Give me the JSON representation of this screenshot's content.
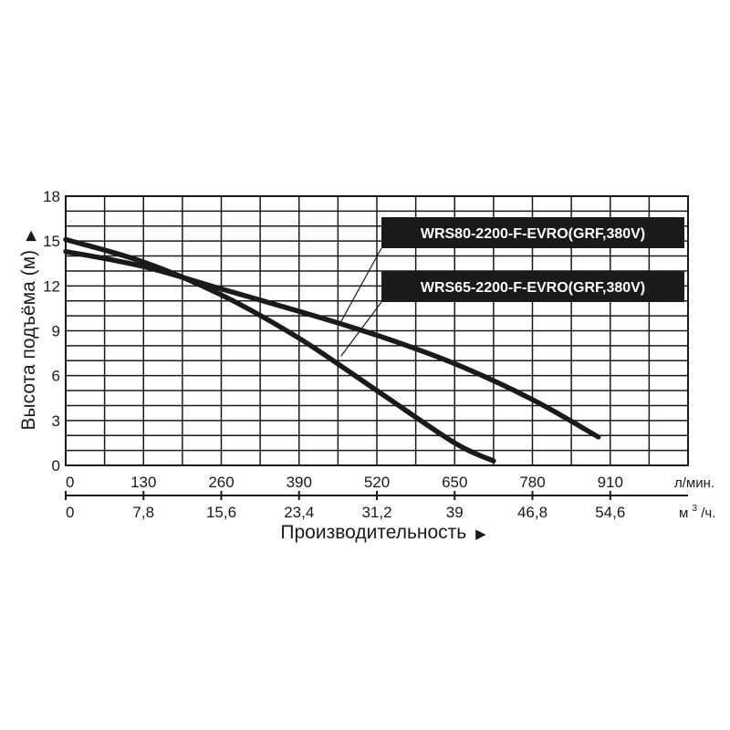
{
  "chart_data": {
    "type": "line",
    "title": "",
    "ylabel": "Высота подъёма (м)",
    "xlabel": "Производительность",
    "ylim": [
      0,
      18
    ],
    "yticks": [
      0,
      3,
      6,
      9,
      12,
      15,
      18
    ],
    "x_primary": {
      "unit": "л/мин.",
      "range": [
        0,
        1040
      ],
      "tick_labels": [
        "0",
        "130",
        "260",
        "390",
        "520",
        "650",
        "780",
        "910"
      ]
    },
    "x_secondary": {
      "unit_base": "м",
      "unit_sup": "3",
      "unit_tail": "/ч.",
      "tick_labels": [
        "0",
        "7,8",
        "15,6",
        "23,4",
        "31,2",
        "39",
        "46,8",
        "54,6"
      ]
    },
    "grid": true,
    "series": [
      {
        "name": "WRS80-2200-F-EVRO(GRF,380V)",
        "x": [
          0,
          130,
          260,
          390,
          520,
          650,
          780,
          890
        ],
        "y": [
          14.3,
          13.3,
          11.8,
          10.3,
          8.7,
          6.8,
          4.4,
          1.9
        ]
      },
      {
        "name": "WRS65-2200-F-EVRO(GRF,380V)",
        "x": [
          0,
          130,
          260,
          390,
          520,
          650,
          715
        ],
        "y": [
          15.1,
          13.6,
          11.4,
          8.5,
          5.0,
          1.5,
          0.3
        ]
      }
    ]
  }
}
